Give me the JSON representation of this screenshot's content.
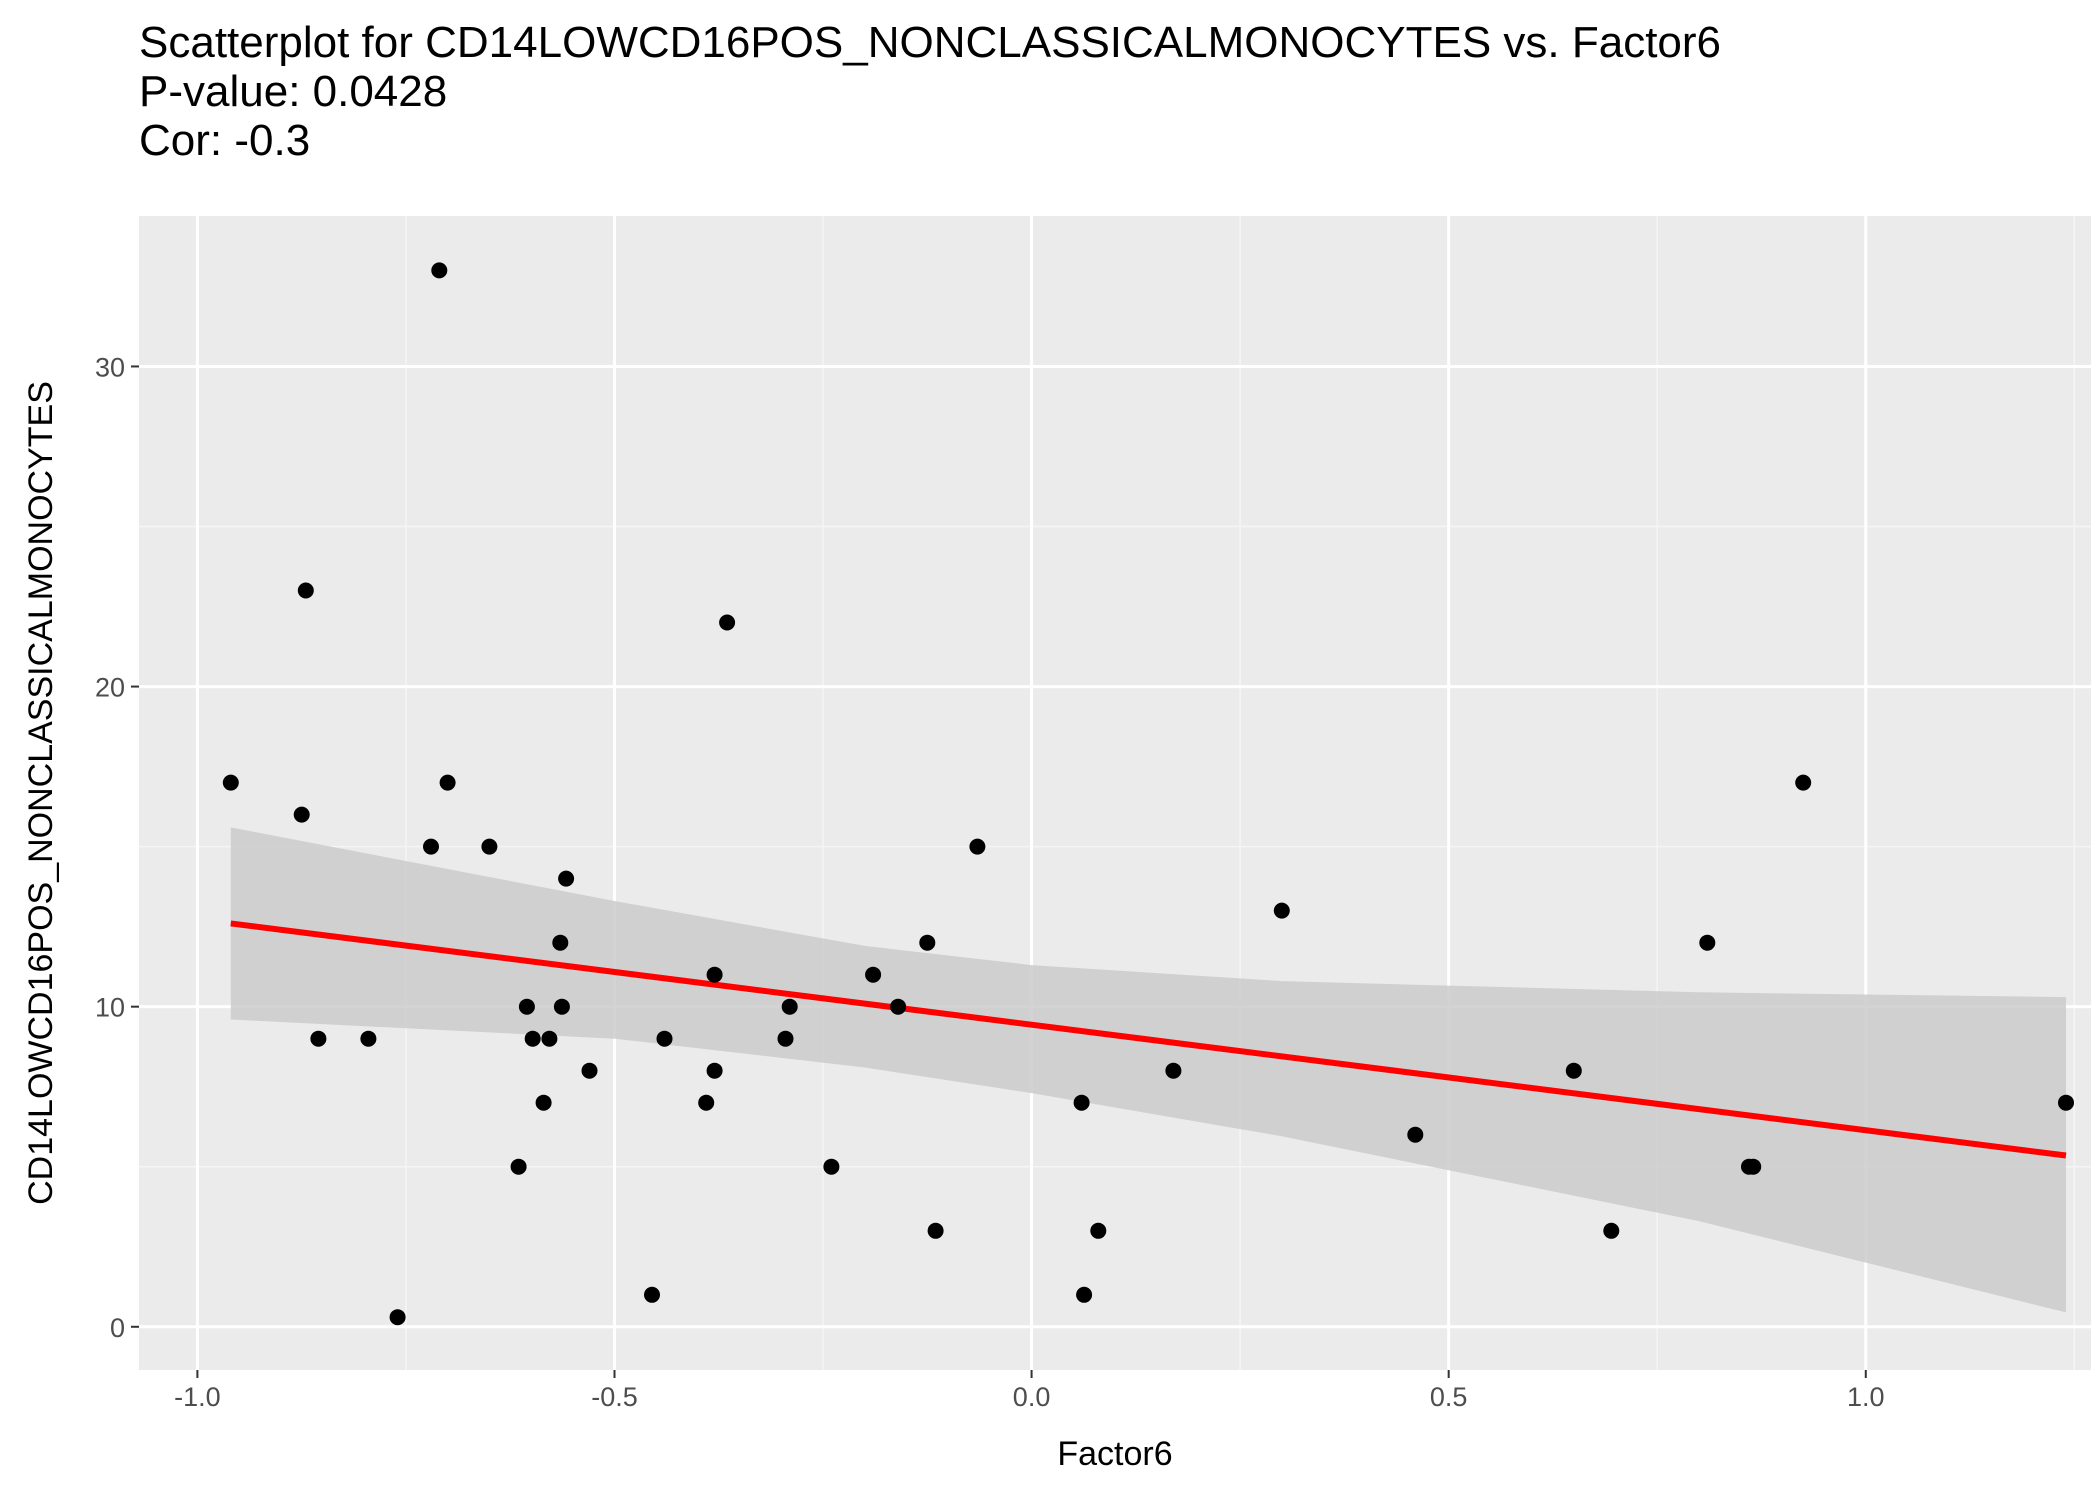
{
  "chart_data": {
    "type": "scatter",
    "title": "Scatterplot for CD14LOWCD16POS_NONCLASSICALMONOCYTES vs. Factor6",
    "subtitle_lines": [
      "P-value: 0.0428",
      "Cor: -0.3"
    ],
    "xlabel": "Factor6",
    "ylabel": "CD14LOWCD16POS_NONCLASSICALMONOCYTES",
    "xlim": [
      -1.07,
      1.27
    ],
    "ylim": [
      -1.35,
      34.7
    ],
    "x_ticks": [
      -1.0,
      -0.5,
      0.0,
      0.5,
      1.0
    ],
    "x_tick_labels": [
      "-1.0",
      "-0.5",
      "0.0",
      "0.5",
      "1.0"
    ],
    "y_ticks": [
      0,
      10,
      20,
      30
    ],
    "y_tick_labels": [
      "0",
      "10",
      "20",
      "30"
    ],
    "grid": true,
    "points": [
      {
        "x": -0.96,
        "y": 17
      },
      {
        "x": -0.87,
        "y": 23
      },
      {
        "x": -0.875,
        "y": 16
      },
      {
        "x": -0.855,
        "y": 9
      },
      {
        "x": -0.795,
        "y": 9
      },
      {
        "x": -0.76,
        "y": 0.3
      },
      {
        "x": -0.72,
        "y": 15
      },
      {
        "x": -0.71,
        "y": 33
      },
      {
        "x": -0.7,
        "y": 17
      },
      {
        "x": -0.65,
        "y": 15
      },
      {
        "x": -0.615,
        "y": 5
      },
      {
        "x": -0.605,
        "y": 10
      },
      {
        "x": -0.598,
        "y": 9
      },
      {
        "x": -0.585,
        "y": 7
      },
      {
        "x": -0.578,
        "y": 9
      },
      {
        "x": -0.565,
        "y": 12
      },
      {
        "x": -0.563,
        "y": 10
      },
      {
        "x": -0.558,
        "y": 14
      },
      {
        "x": -0.53,
        "y": 8
      },
      {
        "x": -0.455,
        "y": 1
      },
      {
        "x": -0.44,
        "y": 9
      },
      {
        "x": -0.39,
        "y": 7
      },
      {
        "x": -0.38,
        "y": 11
      },
      {
        "x": -0.38,
        "y": 8
      },
      {
        "x": -0.365,
        "y": 22
      },
      {
        "x": -0.295,
        "y": 9
      },
      {
        "x": -0.29,
        "y": 10
      },
      {
        "x": -0.24,
        "y": 5
      },
      {
        "x": -0.19,
        "y": 11
      },
      {
        "x": -0.16,
        "y": 10
      },
      {
        "x": -0.125,
        "y": 12
      },
      {
        "x": -0.115,
        "y": 3
      },
      {
        "x": -0.065,
        "y": 15
      },
      {
        "x": 0.06,
        "y": 7
      },
      {
        "x": 0.063,
        "y": 1
      },
      {
        "x": 0.08,
        "y": 3
      },
      {
        "x": 0.17,
        "y": 8
      },
      {
        "x": 0.3,
        "y": 13
      },
      {
        "x": 0.46,
        "y": 6
      },
      {
        "x": 0.65,
        "y": 8
      },
      {
        "x": 0.695,
        "y": 3
      },
      {
        "x": 0.81,
        "y": 12
      },
      {
        "x": 0.86,
        "y": 5
      },
      {
        "x": 0.865,
        "y": 5
      },
      {
        "x": 0.925,
        "y": 17
      },
      {
        "x": 1.24,
        "y": 7
      }
    ],
    "fit_line": {
      "x": [
        -0.96,
        1.24
      ],
      "y": [
        12.6,
        5.35
      ],
      "color": "#ff0000"
    },
    "confidence_band": {
      "x": [
        -0.96,
        -0.5,
        -0.2,
        0.0,
        0.3,
        0.8,
        1.24
      ],
      "upper": [
        15.6,
        13.3,
        11.9,
        11.3,
        10.8,
        10.45,
        10.3
      ],
      "lower": [
        9.6,
        9.0,
        8.1,
        7.3,
        5.95,
        3.3,
        0.45
      ],
      "color": "#cbcbcb"
    },
    "point_color": "#000000",
    "panel_color": "#ebebeb"
  }
}
